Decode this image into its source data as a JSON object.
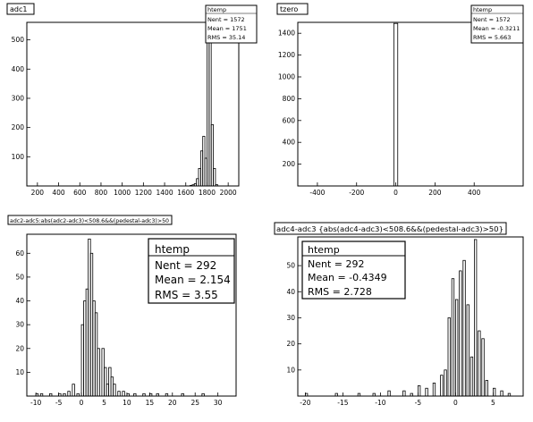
{
  "chart_data": [
    {
      "type": "bar",
      "title": "adc1",
      "stats": {
        "name": "htemp",
        "nent": "Nent = 1572",
        "mean": "Mean = 1751",
        "rms": "RMS = 35.14"
      },
      "xlim": [
        100,
        2100
      ],
      "ylim": [
        0,
        560
      ],
      "xticks": [
        200,
        400,
        600,
        800,
        1000,
        1200,
        1400,
        1600,
        1800,
        2000
      ],
      "xtick_labels": [
        "200",
        "400",
        "600",
        "800",
        "1000",
        "1200",
        "1400",
        "1600",
        "1800",
        "2000"
      ],
      "yticks": [
        100,
        200,
        300,
        400,
        500
      ],
      "ytick_labels": [
        "100",
        "200",
        "300",
        "400",
        "500"
      ],
      "bins": [
        {
          "x0": 1640,
          "x1": 1660,
          "v": 2
        },
        {
          "x0": 1660,
          "x1": 1680,
          "v": 4
        },
        {
          "x0": 1680,
          "x1": 1700,
          "v": 8
        },
        {
          "x0": 1700,
          "x1": 1720,
          "v": 25
        },
        {
          "x0": 1720,
          "x1": 1740,
          "v": 60
        },
        {
          "x0": 1740,
          "x1": 1760,
          "v": 120
        },
        {
          "x0": 1760,
          "x1": 1780,
          "v": 170
        },
        {
          "x0": 1780,
          "x1": 1800,
          "v": 95
        },
        {
          "x0": 1800,
          "x1": 1820,
          "v": 500
        },
        {
          "x0": 1820,
          "x1": 1840,
          "v": 560
        },
        {
          "x0": 1840,
          "x1": 1860,
          "v": 210
        },
        {
          "x0": 1860,
          "x1": 1880,
          "v": 60
        },
        {
          "x0": 1880,
          "x1": 1900,
          "v": 5
        }
      ]
    },
    {
      "type": "bar",
      "title": "tzero",
      "stats": {
        "name": "htemp",
        "nent": "Nent = 1572",
        "mean": "Mean = -0.3211",
        "rms": "RMS = 5.663"
      },
      "xlim": [
        -500,
        650
      ],
      "ylim": [
        0,
        1500
      ],
      "xticks": [
        -400,
        -200,
        0,
        200,
        400
      ],
      "xtick_labels": [
        "-400",
        "-200",
        "0",
        "200",
        "400"
      ],
      "yticks": [
        200,
        400,
        600,
        800,
        1000,
        1200,
        1400
      ],
      "ytick_labels": [
        "200",
        "400",
        "600",
        "800",
        "1000",
        "1200",
        "1400"
      ],
      "bins": [
        {
          "x0": -10,
          "x1": 10,
          "v": 1490
        }
      ]
    },
    {
      "type": "bar",
      "title": "adc2-adc5:abs(adc2-adc3)<508.6&&(pedestal-adc3)>50",
      "stats": {
        "name": "htemp",
        "nent": "Nent = 292",
        "mean": "Mean = 2.154",
        "rms": "RMS = 3.55"
      },
      "xlim": [
        -12,
        34
      ],
      "ylim": [
        0,
        68
      ],
      "xticks": [
        -10,
        -5,
        0,
        5,
        10,
        15,
        20,
        25,
        30
      ],
      "xtick_labels": [
        "-10",
        "-5",
        "0",
        "5",
        "10",
        "15",
        "20",
        "25",
        "30"
      ],
      "yticks": [
        10,
        20,
        30,
        40,
        50,
        60
      ],
      "ytick_labels": [
        "10",
        "20",
        "30",
        "40",
        "50",
        "60"
      ],
      "bins": [
        {
          "x0": -10.0,
          "x1": -9.5,
          "v": 1
        },
        {
          "x0": -9.0,
          "x1": -8.5,
          "v": 1
        },
        {
          "x0": -7.0,
          "x1": -6.5,
          "v": 1
        },
        {
          "x0": -5.0,
          "x1": -4.5,
          "v": 1
        },
        {
          "x0": -4.0,
          "x1": -3.5,
          "v": 1
        },
        {
          "x0": -3.0,
          "x1": -2.5,
          "v": 2
        },
        {
          "x0": -2.0,
          "x1": -1.5,
          "v": 5
        },
        {
          "x0": -1.0,
          "x1": -0.5,
          "v": 1
        },
        {
          "x0": 0.0,
          "x1": 0.5,
          "v": 30
        },
        {
          "x0": 0.5,
          "x1": 1.0,
          "v": 40
        },
        {
          "x0": 1.0,
          "x1": 1.5,
          "v": 45
        },
        {
          "x0": 1.5,
          "x1": 2.0,
          "v": 66
        },
        {
          "x0": 2.0,
          "x1": 2.5,
          "v": 60
        },
        {
          "x0": 2.5,
          "x1": 3.0,
          "v": 40
        },
        {
          "x0": 3.0,
          "x1": 3.5,
          "v": 35
        },
        {
          "x0": 3.5,
          "x1": 4.0,
          "v": 20
        },
        {
          "x0": 4.5,
          "x1": 5.0,
          "v": 20
        },
        {
          "x0": 5.0,
          "x1": 5.5,
          "v": 12
        },
        {
          "x0": 5.5,
          "x1": 6.0,
          "v": 5
        },
        {
          "x0": 6.0,
          "x1": 6.5,
          "v": 12
        },
        {
          "x0": 6.5,
          "x1": 7.0,
          "v": 8
        },
        {
          "x0": 7.0,
          "x1": 7.5,
          "v": 5
        },
        {
          "x0": 8.0,
          "x1": 8.5,
          "v": 2
        },
        {
          "x0": 9.0,
          "x1": 9.5,
          "v": 2
        },
        {
          "x0": 10.0,
          "x1": 10.5,
          "v": 1
        },
        {
          "x0": 11.5,
          "x1": 12.0,
          "v": 1
        },
        {
          "x0": 13.5,
          "x1": 14.0,
          "v": 1
        },
        {
          "x0": 15.0,
          "x1": 15.5,
          "v": 1
        },
        {
          "x0": 16.5,
          "x1": 17.0,
          "v": 1
        },
        {
          "x0": 18.5,
          "x1": 19.0,
          "v": 1
        },
        {
          "x0": 22.0,
          "x1": 22.5,
          "v": 1
        },
        {
          "x0": 26.5,
          "x1": 27.0,
          "v": 1
        }
      ]
    },
    {
      "type": "bar",
      "title": "adc4-adc3 {abs(adc4-adc3)<508.6&&(pedestal-adc3)>50}",
      "stats": {
        "name": "htemp",
        "nent": "Nent = 292",
        "mean": "Mean = -0.4349",
        "rms": "RMS = 2.728"
      },
      "xlim": [
        -21,
        9
      ],
      "ylim": [
        0,
        61
      ],
      "xticks": [
        -20,
        -15,
        -10,
        -5,
        0,
        5
      ],
      "xtick_labels": [
        "-20",
        "-15",
        "-10",
        "-5",
        "0",
        "5"
      ],
      "yticks": [
        10,
        20,
        30,
        40,
        50
      ],
      "ytick_labels": [
        "10",
        "20",
        "30",
        "40",
        "50"
      ],
      "bins": [
        {
          "x0": -20.0,
          "x1": -19.7,
          "v": 1
        },
        {
          "x0": -16.0,
          "x1": -15.7,
          "v": 1
        },
        {
          "x0": -13.0,
          "x1": -12.7,
          "v": 1
        },
        {
          "x0": -11.0,
          "x1": -10.7,
          "v": 1
        },
        {
          "x0": -9.0,
          "x1": -8.7,
          "v": 2
        },
        {
          "x0": -7.0,
          "x1": -6.7,
          "v": 2
        },
        {
          "x0": -6.0,
          "x1": -5.7,
          "v": 1
        },
        {
          "x0": -5.0,
          "x1": -4.7,
          "v": 4
        },
        {
          "x0": -4.0,
          "x1": -3.7,
          "v": 3
        },
        {
          "x0": -3.0,
          "x1": -2.7,
          "v": 5
        },
        {
          "x0": -2.0,
          "x1": -1.7,
          "v": 8
        },
        {
          "x0": -1.5,
          "x1": -1.2,
          "v": 10
        },
        {
          "x0": -1.0,
          "x1": -0.7,
          "v": 30
        },
        {
          "x0": -0.5,
          "x1": -0.2,
          "v": 45
        },
        {
          "x0": 0.0,
          "x1": 0.3,
          "v": 37
        },
        {
          "x0": 0.5,
          "x1": 0.8,
          "v": 48
        },
        {
          "x0": 1.0,
          "x1": 1.3,
          "v": 52
        },
        {
          "x0": 1.5,
          "x1": 1.8,
          "v": 35
        },
        {
          "x0": 2.0,
          "x1": 2.3,
          "v": 15
        },
        {
          "x0": 2.5,
          "x1": 2.8,
          "v": 60
        },
        {
          "x0": 3.0,
          "x1": 3.3,
          "v": 25
        },
        {
          "x0": 3.5,
          "x1": 3.8,
          "v": 22
        },
        {
          "x0": 4.0,
          "x1": 4.3,
          "v": 6
        },
        {
          "x0": 5.0,
          "x1": 5.3,
          "v": 3
        },
        {
          "x0": 6.0,
          "x1": 6.3,
          "v": 2
        },
        {
          "x0": 7.0,
          "x1": 7.3,
          "v": 1
        }
      ]
    }
  ]
}
